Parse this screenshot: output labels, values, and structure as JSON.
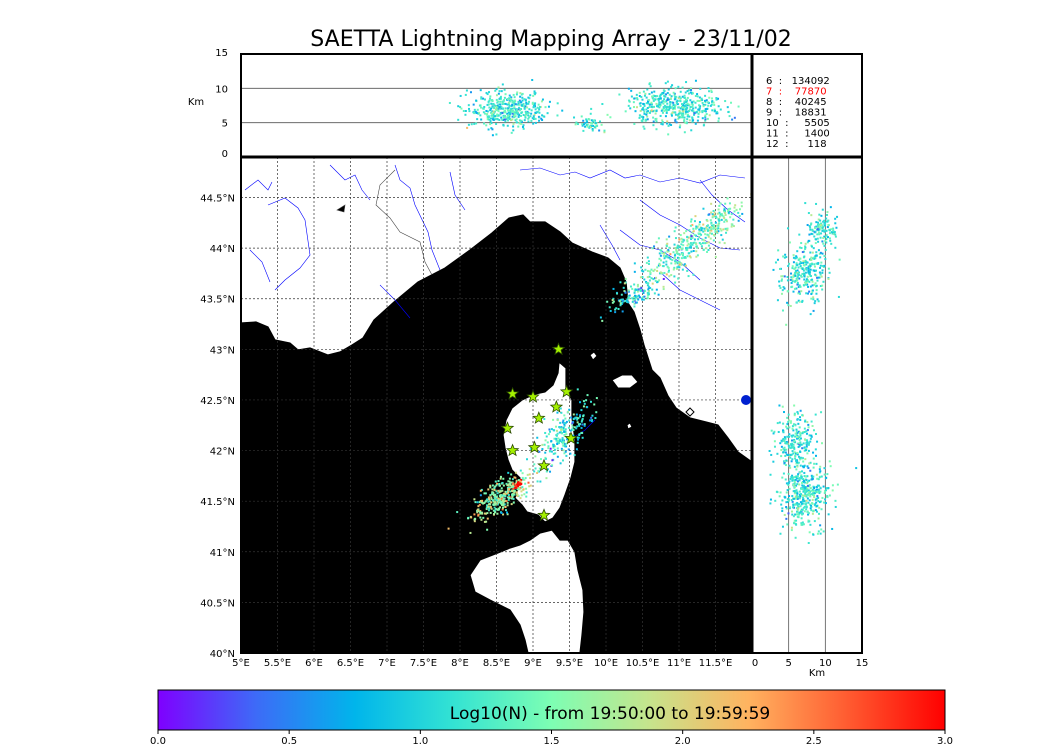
{
  "title": "SAETTA Lightning Mapping Array - 23/11/02",
  "chart_data": {
    "type": "scatter",
    "map": {
      "lon_range": [
        5.0,
        12.0
      ],
      "lat_range": [
        40.0,
        44.9
      ],
      "lon_ticks": [
        "5°E",
        "5.5°E",
        "6°E",
        "6.5°E",
        "7°E",
        "7.5°E",
        "8°E",
        "8.5°E",
        "9°E",
        "9.5°E",
        "10°E",
        "10.5°E",
        "11°E",
        "11.5°E"
      ],
      "lat_ticks": [
        "40°N",
        "40.5°N",
        "41°N",
        "41.5°N",
        "42°N",
        "42.5°N",
        "43°N",
        "43.5°N",
        "44°N",
        "44.5°N"
      ],
      "grid": true,
      "sea_color": "#b8eefc",
      "stations": [
        {
          "lon": 9.35,
          "lat": 43.0
        },
        {
          "lon": 8.72,
          "lat": 42.56
        },
        {
          "lon": 9.0,
          "lat": 42.53
        },
        {
          "lon": 9.46,
          "lat": 42.58
        },
        {
          "lon": 9.32,
          "lat": 42.43
        },
        {
          "lon": 9.08,
          "lat": 42.32
        },
        {
          "lon": 8.65,
          "lat": 42.22
        },
        {
          "lon": 8.72,
          "lat": 42.0
        },
        {
          "lon": 9.02,
          "lat": 42.03
        },
        {
          "lon": 9.52,
          "lat": 42.12
        },
        {
          "lon": 9.15,
          "lat": 41.85
        },
        {
          "lon": 9.15,
          "lat": 41.36
        }
      ],
      "lightning_clusters": [
        {
          "lon": 8.55,
          "lat": 41.55,
          "spread_lon": 0.32,
          "spread_lat": 0.2,
          "n": 340,
          "intensity": 0.55
        },
        {
          "lon": 8.78,
          "lat": 41.67,
          "spread_lon": 0.05,
          "spread_lat": 0.03,
          "n": 30,
          "intensity": 0.95
        },
        {
          "lon": 9.4,
          "lat": 42.15,
          "spread_lon": 0.35,
          "spread_lat": 0.3,
          "n": 220,
          "intensity": 0.35
        },
        {
          "lon": 10.4,
          "lat": 43.55,
          "spread_lon": 0.3,
          "spread_lat": 0.15,
          "n": 120,
          "intensity": 0.35
        },
        {
          "lon": 10.95,
          "lat": 43.95,
          "spread_lon": 0.45,
          "spread_lat": 0.25,
          "n": 230,
          "intensity": 0.45
        },
        {
          "lon": 11.45,
          "lat": 44.25,
          "spread_lon": 0.35,
          "spread_lat": 0.18,
          "n": 160,
          "intensity": 0.45
        }
      ]
    },
    "altitude_lon_panel": {
      "ylabel": "Km",
      "y_range": [
        0,
        15
      ],
      "y_ticks": [
        "0",
        "5",
        "10",
        "15"
      ],
      "hlines": [
        5,
        10
      ],
      "clusters": [
        {
          "lon": 8.65,
          "alt": 7.0,
          "spread_lon": 0.45,
          "spread_alt": 2.2,
          "n": 420
        },
        {
          "lon": 9.75,
          "alt": 5.0,
          "spread_lon": 0.15,
          "spread_alt": 1.0,
          "n": 50
        },
        {
          "lon": 10.95,
          "alt": 7.5,
          "spread_lon": 0.55,
          "spread_alt": 2.3,
          "n": 450
        }
      ]
    },
    "altitude_lat_panel": {
      "xlabel": "Km",
      "x_range": [
        0,
        15
      ],
      "x_ticks": [
        "0",
        "5",
        "10",
        "15"
      ],
      "vlines": [
        5,
        10
      ],
      "clusters": [
        {
          "lat": 41.55,
          "alt": 7.0,
          "spread_lat": 0.25,
          "spread_alt": 3.0,
          "n": 380
        },
        {
          "lat": 42.1,
          "alt": 6.0,
          "spread_lat": 0.25,
          "spread_alt": 2.5,
          "n": 240
        },
        {
          "lat": 43.75,
          "alt": 7.0,
          "spread_lat": 0.25,
          "spread_alt": 3.0,
          "n": 280
        },
        {
          "lat": 44.2,
          "alt": 9.5,
          "spread_lat": 0.15,
          "spread_alt": 2.0,
          "n": 120
        }
      ]
    },
    "station_counts": [
      {
        "label": "6  :   134092",
        "color": "#000000"
      },
      {
        "label": "7  :    77870",
        "color": "#ff0000"
      },
      {
        "label": "8  :    40245",
        "color": "#000000"
      },
      {
        "label": "9  :    18831",
        "color": "#000000"
      },
      {
        "label": "10  :     5505",
        "color": "#000000"
      },
      {
        "label": "11  :     1400",
        "color": "#000000"
      },
      {
        "label": "12  :      118",
        "color": "#000000"
      }
    ],
    "colorbar": {
      "label": "Log10(N) - from 19:50:00 to 19:59:59",
      "range": [
        0.0,
        3.0
      ],
      "ticks": [
        "0.0",
        "0.5",
        "1.0",
        "1.5",
        "2.0",
        "2.5",
        "3.0"
      ],
      "colormap": [
        "#7f00ff",
        "#3d6bf7",
        "#00b5eb",
        "#33e3d3",
        "#7dfeb3",
        "#c6e48c",
        "#ffb360",
        "#ff5c31",
        "#ff0000"
      ]
    }
  }
}
